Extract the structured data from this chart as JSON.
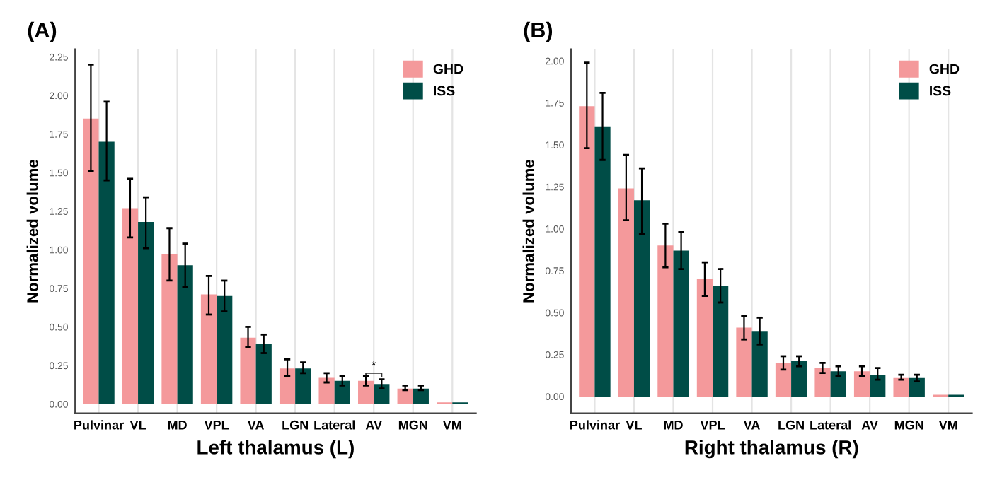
{
  "chart_data": [
    {
      "type": "bar",
      "title": "(A)",
      "xlabel": "Left thalamus (L)",
      "ylabel": "Normalized volume",
      "categories": [
        "Pulvinar",
        "VL",
        "MD",
        "VPL",
        "VA",
        "LGN",
        "Lateral",
        "AV",
        "MGN",
        "VM"
      ],
      "series": [
        {
          "name": "GHD",
          "color": "#f4999b",
          "values": [
            1.85,
            1.27,
            0.97,
            0.71,
            0.43,
            0.23,
            0.17,
            0.15,
            0.1,
            0.01
          ],
          "errors": [
            [
              1.51,
              2.2
            ],
            [
              1.08,
              1.46
            ],
            [
              0.8,
              1.14
            ],
            [
              0.58,
              0.83
            ],
            [
              0.37,
              0.5
            ],
            [
              0.18,
              0.29
            ],
            [
              0.14,
              0.2
            ],
            [
              0.12,
              0.18
            ],
            [
              0.09,
              0.12
            ],
            null
          ]
        },
        {
          "name": "ISS",
          "color": "#004d47",
          "values": [
            1.7,
            1.18,
            0.9,
            0.7,
            0.39,
            0.23,
            0.15,
            0.13,
            0.1,
            0.01
          ],
          "errors": [
            [
              1.45,
              1.96
            ],
            [
              1.01,
              1.34
            ],
            [
              0.76,
              1.04
            ],
            [
              0.6,
              0.8
            ],
            [
              0.33,
              0.45
            ],
            [
              0.2,
              0.27
            ],
            [
              0.12,
              0.18
            ],
            [
              0.1,
              0.16
            ],
            [
              0.09,
              0.12
            ],
            null
          ]
        }
      ],
      "ylim": [
        -0.06,
        2.3
      ],
      "yticks": [
        {
          "value": 0,
          "label": "0.00"
        },
        0.25,
        {
          "value": 0.5,
          "label": "0.50"
        },
        0.75,
        {
          "value": 1,
          "label": "1.00"
        },
        1.25,
        {
          "value": 1.5,
          "label": "1.50"
        },
        1.75,
        {
          "value": 2,
          "label": "2.00"
        },
        2.25
      ],
      "grid": "x",
      "legend": "top right",
      "annotations": [
        {
          "text": "*",
          "x": "AV",
          "y": 0.2
        }
      ]
    },
    {
      "type": "bar",
      "title": "(B)",
      "xlabel": "Right thalamus (R)",
      "ylabel": "Normalized volume",
      "categories": [
        "Pulvinar",
        "VL",
        "MD",
        "VPL",
        "VA",
        "LGN",
        "Lateral",
        "AV",
        "MGN",
        "VM"
      ],
      "series": [
        {
          "name": "GHD",
          "color": "#f4999b",
          "values": [
            1.73,
            1.24,
            0.9,
            0.7,
            0.41,
            0.2,
            0.17,
            0.15,
            0.11,
            0.01
          ],
          "errors": [
            [
              1.48,
              1.99
            ],
            [
              1.05,
              1.44
            ],
            [
              0.77,
              1.03
            ],
            [
              0.6,
              0.8
            ],
            [
              0.34,
              0.48
            ],
            [
              0.16,
              0.24
            ],
            [
              0.14,
              0.2
            ],
            [
              0.12,
              0.18
            ],
            [
              0.1,
              0.13
            ],
            null
          ]
        },
        {
          "name": "ISS",
          "color": "#004d47",
          "values": [
            1.61,
            1.17,
            0.87,
            0.66,
            0.39,
            0.21,
            0.15,
            0.13,
            0.11,
            0.01
          ],
          "errors": [
            [
              1.41,
              1.81
            ],
            [
              0.97,
              1.36
            ],
            [
              0.76,
              0.98
            ],
            [
              0.56,
              0.76
            ],
            [
              0.31,
              0.47
            ],
            [
              0.18,
              0.24
            ],
            [
              0.12,
              0.18
            ],
            [
              0.1,
              0.17
            ],
            [
              0.09,
              0.13
            ],
            null
          ]
        }
      ],
      "ylim": [
        -0.1,
        2.07
      ],
      "yticks": [
        {
          "value": 0,
          "label": "0.00"
        },
        0.25,
        {
          "value": 0.5,
          "label": "0.50"
        },
        0.75,
        {
          "value": 1,
          "label": "1.00"
        },
        1.25,
        {
          "value": 1.5,
          "label": "1.50"
        },
        1.75,
        {
          "value": 2,
          "label": "2.00"
        }
      ],
      "grid": "x",
      "legend": "top right"
    }
  ]
}
